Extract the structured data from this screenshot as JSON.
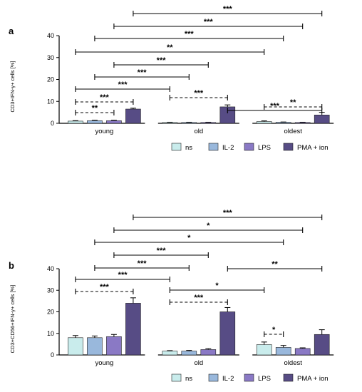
{
  "colors": {
    "ns": "#c9ecec",
    "IL-2": "#99b8dc",
    "LPS": "#8a79c5",
    "PMA + ion": "#574c85"
  },
  "chart_data": [
    {
      "type": "bar",
      "panel": "a",
      "ylabel": "CD3+IFN-γ+ cells [%]",
      "ylim": [
        0,
        40
      ],
      "yticks": [
        "0",
        "10",
        "20",
        "30",
        "40"
      ],
      "categories": [
        "young",
        "old",
        "oldest"
      ],
      "legend": [
        "ns",
        "IL-2",
        "LPS",
        "PMA + ion"
      ],
      "series": [
        {
          "name": "ns",
          "values": [
            1.0,
            0.4,
            0.8
          ],
          "errors": [
            0.2,
            0.1,
            0.3
          ]
        },
        {
          "name": "IL-2",
          "values": [
            1.2,
            0.4,
            0.5
          ],
          "errors": [
            0.2,
            0.1,
            0.1
          ]
        },
        {
          "name": "LPS",
          "values": [
            1.2,
            0.4,
            0.4
          ],
          "errors": [
            0.2,
            0.1,
            0.1
          ]
        },
        {
          "name": "PMA + ion",
          "values": [
            6.5,
            7.5,
            3.8
          ],
          "errors": [
            0.4,
            0.9,
            1.2
          ]
        }
      ],
      "annotations": [
        {
          "label": "***",
          "from": [
            0,
            3
          ],
          "to": [
            2,
            3
          ],
          "style": "solid"
        },
        {
          "label": "***",
          "from": [
            0,
            2
          ],
          "to": [
            2,
            2
          ],
          "style": "solid"
        },
        {
          "label": "***",
          "from": [
            0,
            1
          ],
          "to": [
            2,
            1
          ],
          "style": "solid"
        },
        {
          "label": "**",
          "from": [
            0,
            0
          ],
          "to": [
            2,
            0
          ],
          "style": "solid"
        },
        {
          "label": "***",
          "from": [
            0,
            2
          ],
          "to": [
            1,
            2
          ],
          "style": "solid"
        },
        {
          "label": "***",
          "from": [
            0,
            1
          ],
          "to": [
            1,
            1
          ],
          "style": "solid"
        },
        {
          "label": "***",
          "from": [
            0,
            0
          ],
          "to": [
            1,
            0
          ],
          "style": "solid"
        },
        {
          "label": "***",
          "from": [
            1,
            3
          ],
          "to": [
            2,
            3
          ],
          "style": "solid"
        },
        {
          "label": "***",
          "from": [
            0,
            0
          ],
          "to": [
            0,
            3
          ],
          "style": "dashed"
        },
        {
          "label": "**",
          "from": [
            0,
            0
          ],
          "to": [
            0,
            2
          ],
          "style": "dashed"
        },
        {
          "label": "***",
          "from": [
            1,
            0
          ],
          "to": [
            1,
            3
          ],
          "style": "dashed"
        },
        {
          "label": "**",
          "from": [
            2,
            0
          ],
          "to": [
            2,
            3
          ],
          "style": "dashed"
        }
      ]
    },
    {
      "type": "bar",
      "panel": "b",
      "ylabel": "CD3+CD56+IFN-γ+ cells [%]",
      "ylim": [
        0,
        40
      ],
      "yticks": [
        "0",
        "10",
        "20",
        "30",
        "40"
      ],
      "categories": [
        "young",
        "old",
        "oldest"
      ],
      "legend": [
        "ns",
        "IL-2",
        "LPS",
        "PMA + ion"
      ],
      "series": [
        {
          "name": "ns",
          "values": [
            8.0,
            1.8,
            4.8
          ],
          "errors": [
            1.0,
            0.2,
            1.2
          ]
        },
        {
          "name": "IL-2",
          "values": [
            8.0,
            1.8,
            3.5
          ],
          "errors": [
            0.8,
            0.3,
            0.9
          ]
        },
        {
          "name": "LPS",
          "values": [
            8.5,
            2.5,
            3.0
          ],
          "errors": [
            1.0,
            0.4,
            0.3
          ]
        },
        {
          "name": "PMA + ion",
          "values": [
            24.0,
            20.0,
            9.5
          ],
          "errors": [
            2.5,
            2.0,
            2.2
          ]
        }
      ],
      "annotations": [
        {
          "label": "***",
          "from": [
            0,
            3
          ],
          "to": [
            2,
            3
          ],
          "style": "solid"
        },
        {
          "label": "*",
          "from": [
            0,
            2
          ],
          "to": [
            2,
            2
          ],
          "style": "solid"
        },
        {
          "label": "*",
          "from": [
            0,
            1
          ],
          "to": [
            2,
            1
          ],
          "style": "solid"
        },
        {
          "label": "***",
          "from": [
            0,
            2
          ],
          "to": [
            1,
            2
          ],
          "style": "solid"
        },
        {
          "label": "***",
          "from": [
            0,
            1
          ],
          "to": [
            1,
            1
          ],
          "style": "solid"
        },
        {
          "label": "***",
          "from": [
            0,
            0
          ],
          "to": [
            1,
            0
          ],
          "style": "solid"
        },
        {
          "label": "*",
          "from": [
            1,
            0
          ],
          "to": [
            2,
            0
          ],
          "style": "solid"
        },
        {
          "label": "**",
          "from": [
            1,
            3
          ],
          "to": [
            2,
            3
          ],
          "style": "solid"
        },
        {
          "label": "***",
          "from": [
            0,
            0
          ],
          "to": [
            0,
            3
          ],
          "style": "dashed"
        },
        {
          "label": "***",
          "from": [
            1,
            0
          ],
          "to": [
            1,
            3
          ],
          "style": "dashed"
        },
        {
          "label": "*",
          "from": [
            2,
            0
          ],
          "to": [
            2,
            1
          ],
          "style": "dashed"
        }
      ]
    }
  ]
}
